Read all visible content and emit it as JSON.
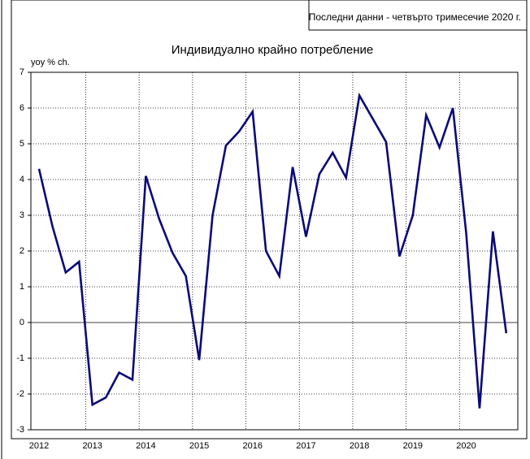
{
  "chart_data": {
    "type": "line",
    "title": "Индивидуално крайно потребление",
    "note": "Последни данни - четвърто тримесечие 2020 г.",
    "y_label": "yoy % ch.",
    "categories": [
      "2012",
      null,
      null,
      null,
      "2013",
      null,
      null,
      null,
      "2014",
      null,
      null,
      null,
      "2015",
      null,
      null,
      null,
      "2016",
      null,
      null,
      null,
      "2017",
      null,
      null,
      null,
      "2018",
      null,
      null,
      null,
      "2019",
      null,
      null,
      null,
      "2020",
      null,
      null,
      null
    ],
    "series": [
      {
        "name": "Индивидуално крайно потребление",
        "color": "#0a0a78",
        "values": [
          4.3,
          2.7,
          1.4,
          1.7,
          -2.3,
          -2.1,
          -1.4,
          -1.6,
          4.1,
          2.9,
          1.95,
          1.3,
          -1.05,
          3.0,
          4.95,
          5.35,
          5.9,
          2.0,
          1.3,
          4.35,
          2.4,
          4.15,
          4.75,
          4.05,
          6.35,
          5.7,
          5.05,
          1.85,
          3.0,
          5.8,
          4.9,
          6.0,
          2.5,
          -2.4,
          2.55,
          -0.3
        ]
      }
    ],
    "ylim": [
      -3,
      7
    ],
    "yticks": [
      -3,
      -2,
      -1,
      0,
      1,
      2,
      3,
      4,
      5,
      6,
      7
    ],
    "grid": true
  }
}
